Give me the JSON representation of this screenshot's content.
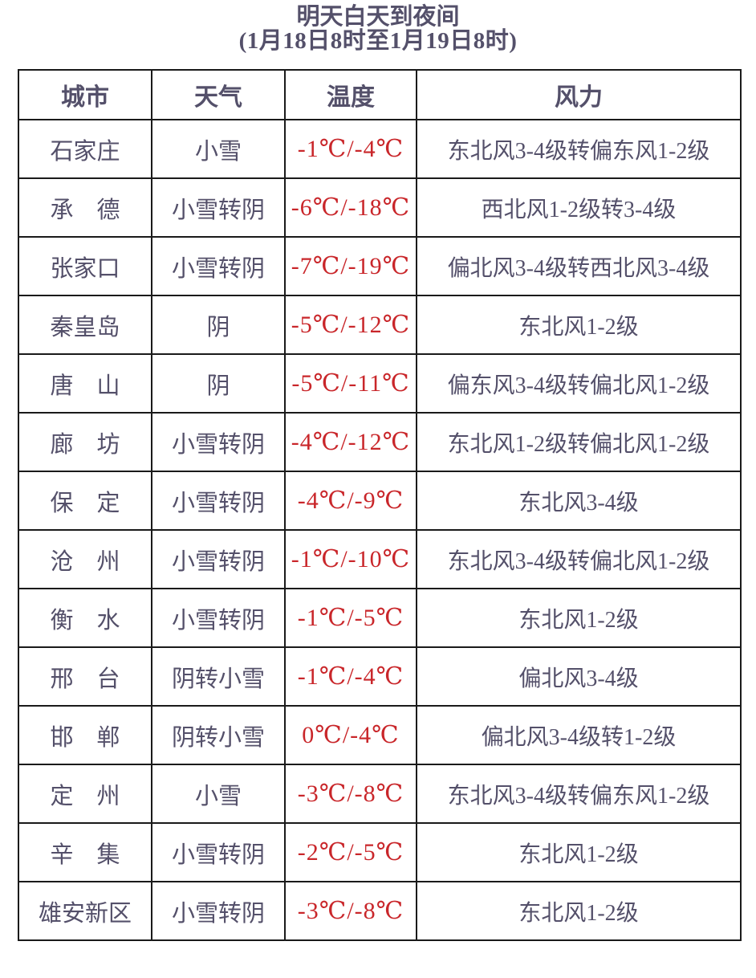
{
  "title": {
    "line1": "明天白天到夜间",
    "line2": "(1月18日8时至1月19日8时)"
  },
  "table": {
    "headers": [
      "城市",
      "天气",
      "温度",
      "风力"
    ],
    "rows": [
      {
        "city": "石家庄",
        "weather": "小雪",
        "temp": "-1℃/-4℃",
        "wind": "东北风3-4级转偏东风1-2级"
      },
      {
        "city": "承　德",
        "weather": "小雪转阴",
        "temp": "-6℃/-18℃",
        "wind": "西北风1-2级转3-4级"
      },
      {
        "city": "张家口",
        "weather": "小雪转阴",
        "temp": "-7℃/-19℃",
        "wind": "偏北风3-4级转西北风3-4级"
      },
      {
        "city": "秦皇岛",
        "weather": "阴",
        "temp": "-5℃/-12℃",
        "wind": "东北风1-2级"
      },
      {
        "city": "唐　山",
        "weather": "阴",
        "temp": "-5℃/-11℃",
        "wind": "偏东风3-4级转偏北风1-2级"
      },
      {
        "city": "廊　坊",
        "weather": "小雪转阴",
        "temp": "-4℃/-12℃",
        "wind": "东北风1-2级转偏北风1-2级"
      },
      {
        "city": "保　定",
        "weather": "小雪转阴",
        "temp": "-4℃/-9℃",
        "wind": "东北风3-4级"
      },
      {
        "city": "沧　州",
        "weather": "小雪转阴",
        "temp": "-1℃/-10℃",
        "wind": "东北风3-4级转偏北风1-2级"
      },
      {
        "city": "衡　水",
        "weather": "小雪转阴",
        "temp": "-1℃/-5℃",
        "wind": "东北风1-2级"
      },
      {
        "city": "邢　台",
        "weather": "阴转小雪",
        "temp": "-1℃/-4℃",
        "wind": "偏北风3-4级"
      },
      {
        "city": "邯　郸",
        "weather": "阴转小雪",
        "temp": "0℃/-4℃",
        "wind": "偏北风3-4级转1-2级"
      },
      {
        "city": "定　州",
        "weather": "小雪",
        "temp": "-3℃/-8℃",
        "wind": "东北风3-4级转偏东风1-2级"
      },
      {
        "city": "辛　集",
        "weather": "小雪转阴",
        "temp": "-2℃/-5℃",
        "wind": "东北风1-2级"
      },
      {
        "city": "雄安新区",
        "weather": "小雪转阴",
        "temp": "-3℃/-8℃",
        "wind": "东北风1-2级"
      }
    ]
  },
  "colors": {
    "ink": "#54506a",
    "temperature_red": "#c9262a",
    "border": "#1a1a1a",
    "background": "#ffffff"
  }
}
